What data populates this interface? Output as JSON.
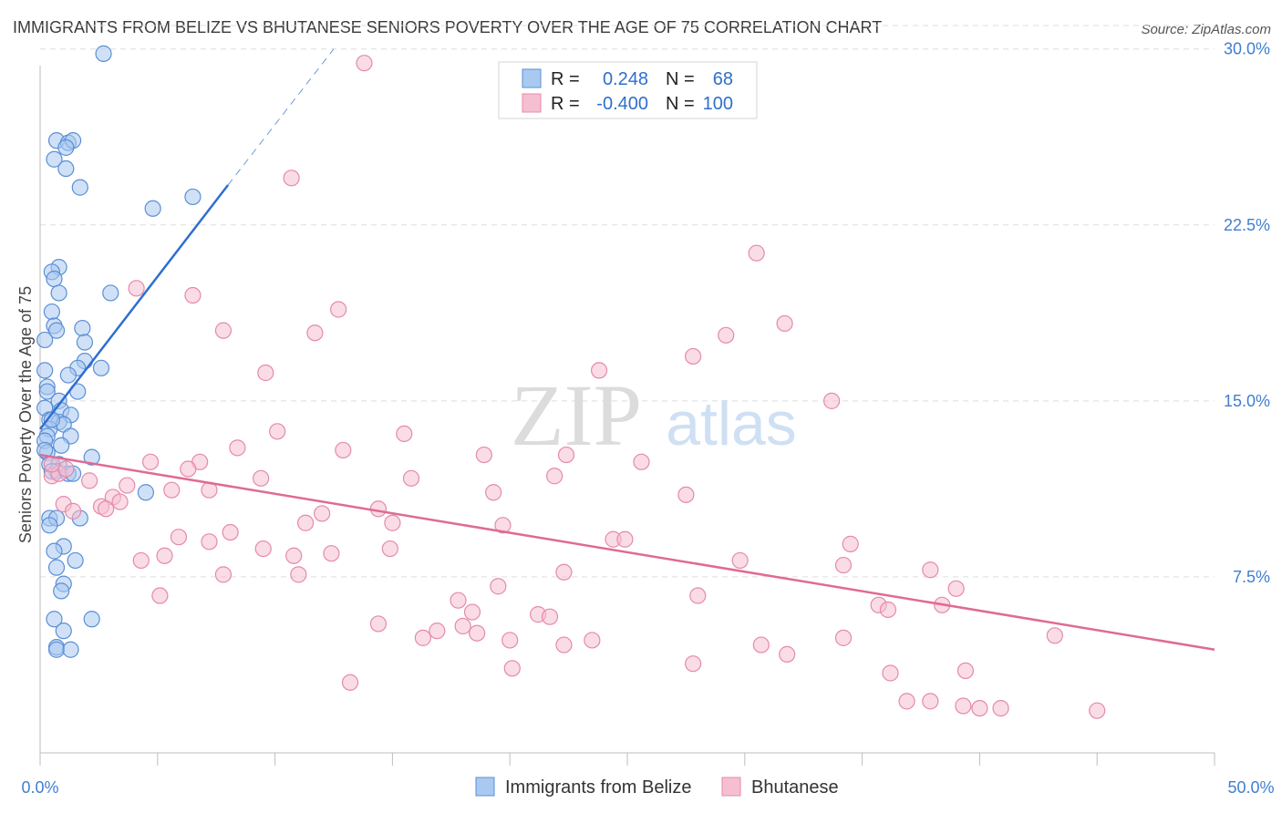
{
  "title": "IMMIGRANTS FROM BELIZE VS BHUTANESE SENIORS POVERTY OVER THE AGE OF 75 CORRELATION CHART",
  "source": "Source: ZipAtlas.com",
  "watermark": {
    "zip": "ZIP",
    "atlas": "atlas"
  },
  "colors": {
    "belize_fill": "#a9c9f1",
    "belize_stroke": "#5a8fd6",
    "belize_line": "#2e6fd0",
    "bhutan_fill": "#f6bfd1",
    "bhutan_stroke": "#e58aa9",
    "bhutan_line": "#e06a94",
    "axis_label": "#3f7fd0",
    "grid": "#dddddd"
  },
  "legend": {
    "rows": [
      {
        "r_label": "R =",
        "r_value": "0.248",
        "n_label": "N =",
        "n_value": "68"
      },
      {
        "r_label": "R =",
        "r_value": "-0.400",
        "n_label": "N =",
        "n_value": "100"
      }
    ]
  },
  "chart_data": {
    "type": "scatter",
    "title": "IMMIGRANTS FROM BELIZE VS BHUTANESE SENIORS POVERTY OVER THE AGE OF 75 CORRELATION CHART",
    "xlabel": "",
    "ylabel": "Seniors Poverty Over the Age of 75",
    "xlim": [
      0,
      50
    ],
    "ylim": [
      0,
      31
    ],
    "x_tick_labels": [
      "0.0%",
      "50.0%"
    ],
    "y_ticks": [
      7.5,
      15.0,
      22.5,
      30.0
    ],
    "y_tick_labels": [
      "7.5%",
      "15.0%",
      "22.5%",
      "30.0%"
    ],
    "grid": true,
    "legend_position": "top-center",
    "series": [
      {
        "name": "Immigrants from Belize",
        "r": 0.248,
        "n": 68,
        "trend": {
          "x0": 0.0,
          "y0": 13.8,
          "x1": 8.0,
          "y1": 24.2,
          "dash_to_x": 12.5,
          "dash_to_y": 30.0
        },
        "points": [
          [
            2.7,
            29.8
          ],
          [
            0.7,
            26.1
          ],
          [
            1.2,
            26.0
          ],
          [
            1.4,
            26.1
          ],
          [
            1.1,
            25.8
          ],
          [
            0.6,
            25.3
          ],
          [
            1.1,
            24.9
          ],
          [
            1.7,
            24.1
          ],
          [
            4.8,
            23.2
          ],
          [
            6.5,
            23.7
          ],
          [
            0.8,
            20.7
          ],
          [
            0.5,
            20.5
          ],
          [
            0.6,
            20.2
          ],
          [
            3.0,
            19.6
          ],
          [
            0.8,
            19.6
          ],
          [
            0.5,
            18.8
          ],
          [
            0.6,
            18.2
          ],
          [
            0.7,
            18.0
          ],
          [
            1.8,
            18.1
          ],
          [
            0.2,
            17.6
          ],
          [
            1.9,
            17.5
          ],
          [
            1.9,
            16.7
          ],
          [
            2.6,
            16.4
          ],
          [
            1.6,
            16.4
          ],
          [
            0.2,
            16.3
          ],
          [
            1.2,
            16.1
          ],
          [
            0.3,
            15.6
          ],
          [
            0.3,
            15.4
          ],
          [
            1.6,
            15.4
          ],
          [
            0.8,
            15.0
          ],
          [
            0.2,
            14.7
          ],
          [
            0.9,
            14.6
          ],
          [
            1.3,
            14.4
          ],
          [
            0.4,
            14.2
          ],
          [
            0.8,
            14.1
          ],
          [
            1.0,
            14.0
          ],
          [
            0.4,
            13.8
          ],
          [
            1.3,
            13.5
          ],
          [
            0.3,
            13.5
          ],
          [
            0.2,
            13.3
          ],
          [
            0.9,
            13.1
          ],
          [
            0.3,
            12.8
          ],
          [
            0.2,
            12.9
          ],
          [
            2.2,
            12.6
          ],
          [
            0.4,
            12.3
          ],
          [
            0.8,
            12.3
          ],
          [
            0.7,
            12.0
          ],
          [
            0.5,
            12.0
          ],
          [
            1.2,
            11.9
          ],
          [
            1.4,
            11.9
          ],
          [
            4.5,
            11.1
          ],
          [
            0.4,
            10.0
          ],
          [
            0.7,
            10.0
          ],
          [
            1.7,
            10.0
          ],
          [
            0.4,
            9.7
          ],
          [
            1.0,
            8.8
          ],
          [
            0.6,
            8.6
          ],
          [
            1.5,
            8.2
          ],
          [
            0.7,
            7.9
          ],
          [
            1.0,
            7.2
          ],
          [
            0.9,
            6.9
          ],
          [
            0.6,
            5.7
          ],
          [
            2.2,
            5.7
          ],
          [
            0.7,
            4.5
          ],
          [
            1.0,
            5.2
          ],
          [
            0.7,
            4.4
          ],
          [
            1.3,
            4.4
          ],
          [
            0.5,
            14.2
          ]
        ]
      },
      {
        "name": "Bhutanese",
        "r": -0.4,
        "n": 100,
        "trend": {
          "x0": 0.0,
          "y0": 12.7,
          "x1": 50.0,
          "y1": 4.4
        },
        "points": [
          [
            13.8,
            29.4
          ],
          [
            10.7,
            24.5
          ],
          [
            30.5,
            21.3
          ],
          [
            4.1,
            19.8
          ],
          [
            6.5,
            19.5
          ],
          [
            12.7,
            18.9
          ],
          [
            31.7,
            18.3
          ],
          [
            7.8,
            18.0
          ],
          [
            11.7,
            17.9
          ],
          [
            29.2,
            17.8
          ],
          [
            27.8,
            16.9
          ],
          [
            9.6,
            16.2
          ],
          [
            23.8,
            16.3
          ],
          [
            33.7,
            15.0
          ],
          [
            10.1,
            13.7
          ],
          [
            15.5,
            13.6
          ],
          [
            8.4,
            13.0
          ],
          [
            12.9,
            12.9
          ],
          [
            18.9,
            12.7
          ],
          [
            22.4,
            12.7
          ],
          [
            4.7,
            12.4
          ],
          [
            6.8,
            12.4
          ],
          [
            25.6,
            12.4
          ],
          [
            6.3,
            12.1
          ],
          [
            0.5,
            11.8
          ],
          [
            0.8,
            11.9
          ],
          [
            15.8,
            11.7
          ],
          [
            2.1,
            11.6
          ],
          [
            9.4,
            11.7
          ],
          [
            21.9,
            11.8
          ],
          [
            3.7,
            11.4
          ],
          [
            7.2,
            11.2
          ],
          [
            5.6,
            11.2
          ],
          [
            19.3,
            11.1
          ],
          [
            27.5,
            11.0
          ],
          [
            3.1,
            10.9
          ],
          [
            3.4,
            10.7
          ],
          [
            1.0,
            10.6
          ],
          [
            2.6,
            10.5
          ],
          [
            14.4,
            10.4
          ],
          [
            1.4,
            10.3
          ],
          [
            2.8,
            10.4
          ],
          [
            12.0,
            10.2
          ],
          [
            11.3,
            9.8
          ],
          [
            15.0,
            9.8
          ],
          [
            19.7,
            9.7
          ],
          [
            8.1,
            9.4
          ],
          [
            5.9,
            9.2
          ],
          [
            7.2,
            9.0
          ],
          [
            24.4,
            9.1
          ],
          [
            24.9,
            9.1
          ],
          [
            34.5,
            8.9
          ],
          [
            9.5,
            8.7
          ],
          [
            14.9,
            8.7
          ],
          [
            12.4,
            8.5
          ],
          [
            10.8,
            8.4
          ],
          [
            5.3,
            8.4
          ],
          [
            4.3,
            8.2
          ],
          [
            29.8,
            8.2
          ],
          [
            34.2,
            8.0
          ],
          [
            22.3,
            7.7
          ],
          [
            37.9,
            7.8
          ],
          [
            7.8,
            7.6
          ],
          [
            11.0,
            7.6
          ],
          [
            19.5,
            7.1
          ],
          [
            39.0,
            7.0
          ],
          [
            5.1,
            6.7
          ],
          [
            28.0,
            6.7
          ],
          [
            17.8,
            6.5
          ],
          [
            18.4,
            6.0
          ],
          [
            35.7,
            6.3
          ],
          [
            36.1,
            6.1
          ],
          [
            38.4,
            6.3
          ],
          [
            21.2,
            5.9
          ],
          [
            21.7,
            5.8
          ],
          [
            14.4,
            5.5
          ],
          [
            18.0,
            5.4
          ],
          [
            16.9,
            5.2
          ],
          [
            18.6,
            5.1
          ],
          [
            43.2,
            5.0
          ],
          [
            16.3,
            4.9
          ],
          [
            20.0,
            4.8
          ],
          [
            23.5,
            4.8
          ],
          [
            22.3,
            4.6
          ],
          [
            30.7,
            4.6
          ],
          [
            34.2,
            4.9
          ],
          [
            31.8,
            4.2
          ],
          [
            27.8,
            3.8
          ],
          [
            20.1,
            3.6
          ],
          [
            36.2,
            3.4
          ],
          [
            39.4,
            3.5
          ],
          [
            13.2,
            3.0
          ],
          [
            36.9,
            2.2
          ],
          [
            37.9,
            2.2
          ],
          [
            39.3,
            2.0
          ],
          [
            40.0,
            1.9
          ],
          [
            40.9,
            1.9
          ],
          [
            45.0,
            1.8
          ],
          [
            1.1,
            12.1
          ],
          [
            0.5,
            12.3
          ]
        ]
      }
    ]
  },
  "bottom_legend": [
    {
      "label": "Immigrants from Belize"
    },
    {
      "label": "Bhutanese"
    }
  ]
}
